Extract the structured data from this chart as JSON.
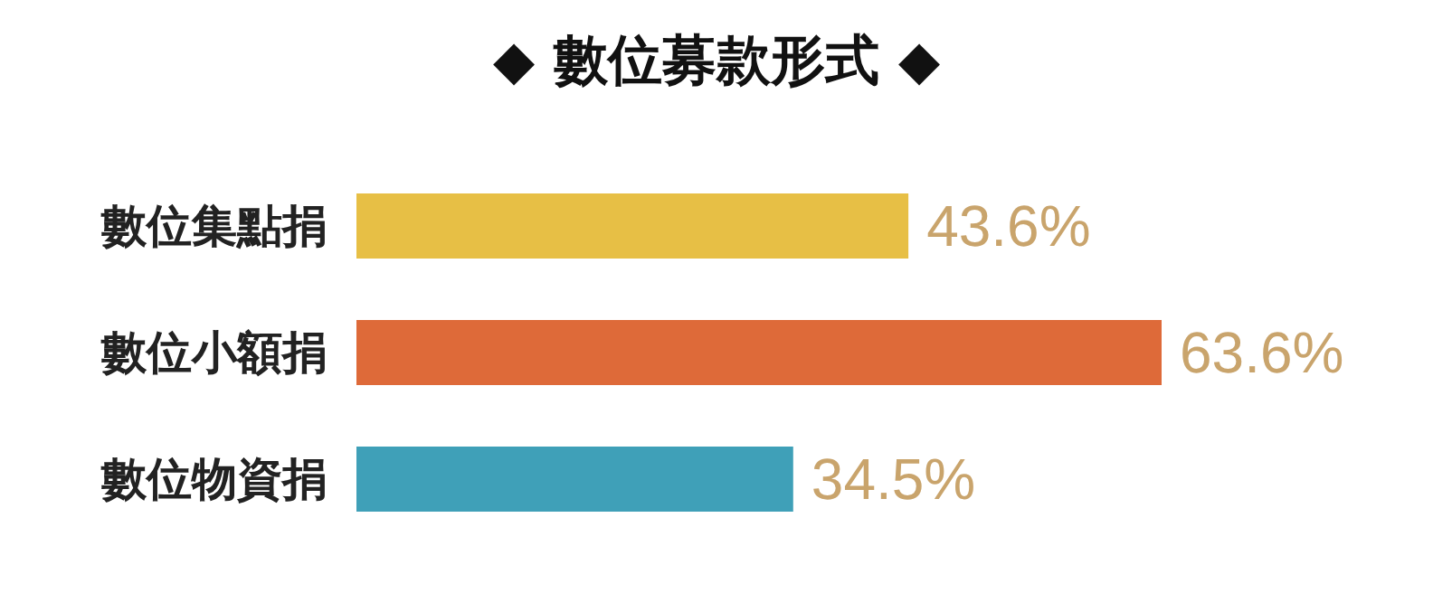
{
  "chart_data": {
    "type": "bar",
    "orientation": "horizontal",
    "title": "◆ 數位募款形式 ◆",
    "categories": [
      "數位集點捐",
      "數位小額捐",
      "數位物資捐"
    ],
    "values": [
      43.6,
      63.6,
      34.5
    ],
    "colors": [
      "#e7bf45",
      "#de6a39",
      "#3fa0b8"
    ],
    "value_labels": [
      "43.6%",
      "63.6%",
      "34.5%"
    ]
  }
}
